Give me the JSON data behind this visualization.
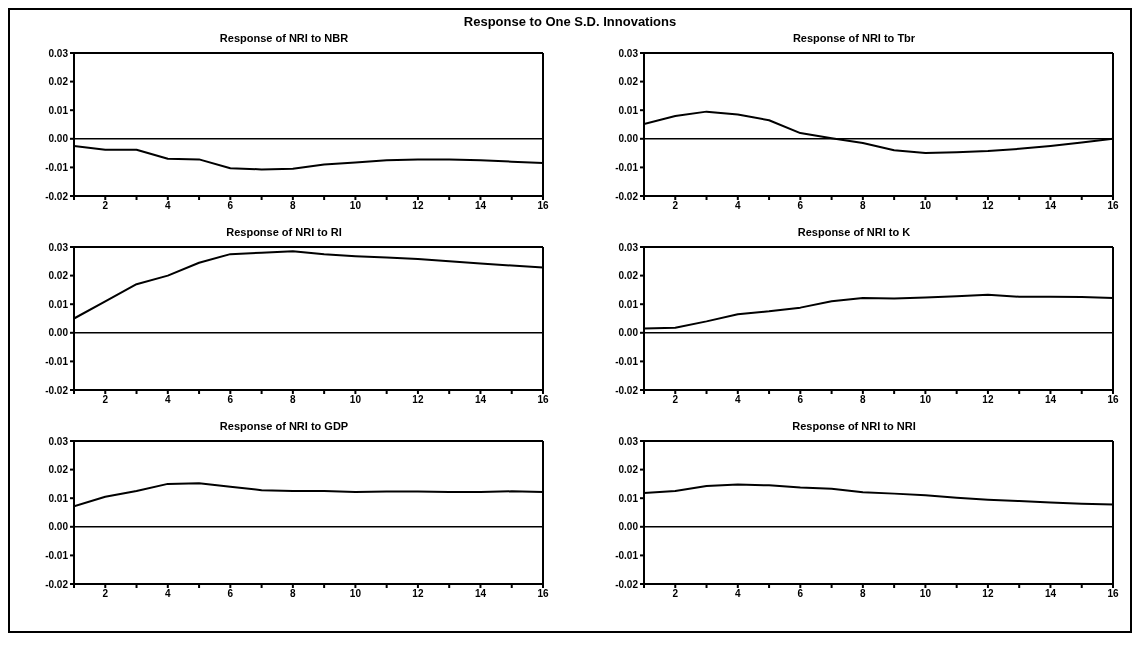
{
  "chart_data": [
    {
      "type": "line",
      "title": "Response of NRI to NBR",
      "annotations": [
        "Response to One S.D. Innovations"
      ],
      "x": [
        1,
        2,
        3,
        4,
        5,
        6,
        7,
        8,
        9,
        10,
        11,
        12,
        13,
        14,
        15,
        16
      ],
      "xlim": [
        1,
        16
      ],
      "xticks": [
        {
          "value": 1,
          "label": null
        },
        2,
        {
          "value": 3,
          "label": null
        },
        4,
        {
          "value": 5,
          "label": null
        },
        6,
        {
          "value": 7,
          "label": null
        },
        8,
        {
          "value": 9,
          "label": null
        },
        10,
        {
          "value": 11,
          "label": null
        },
        12,
        {
          "value": 13,
          "label": null
        },
        14,
        {
          "value": 15,
          "label": null
        },
        16
      ],
      "ylim": [
        -0.02,
        0.03
      ],
      "yticks": [
        {
          "value": -0.02,
          "label": "-0.02"
        },
        {
          "value": -0.01,
          "label": "-0.01"
        },
        {
          "value": 0,
          "label": "0.00"
        },
        {
          "value": 0.01,
          "label": "0.01"
        },
        {
          "value": 0.02,
          "label": "0.02"
        },
        {
          "value": 0.03,
          "label": "0.03"
        }
      ],
      "ref_lines": [
        {
          "axis": "y",
          "value": 0,
          "color": "#000000"
        }
      ],
      "grid": false,
      "legend": false,
      "marker": "none",
      "line_style": "solid",
      "series": [
        {
          "color": "#000000",
          "values": [
            -0.0025,
            -0.0038,
            -0.0038,
            -0.007,
            -0.0072,
            -0.0103,
            -0.0107,
            -0.0105,
            -0.009,
            -0.0083,
            -0.0075,
            -0.0072,
            -0.0072,
            -0.0075,
            -0.008,
            -0.0085
          ]
        }
      ]
    },
    {
      "type": "line",
      "title": "Response of NRI to Tbr",
      "x": [
        1,
        2,
        3,
        4,
        5,
        6,
        7,
        8,
        9,
        10,
        11,
        12,
        13,
        14,
        15,
        16
      ],
      "xlim": [
        1,
        16
      ],
      "xticks": [
        {
          "value": 1,
          "label": null
        },
        2,
        {
          "value": 3,
          "label": null
        },
        4,
        {
          "value": 5,
          "label": null
        },
        6,
        {
          "value": 7,
          "label": null
        },
        8,
        {
          "value": 9,
          "label": null
        },
        10,
        {
          "value": 11,
          "label": null
        },
        12,
        {
          "value": 13,
          "label": null
        },
        14,
        {
          "value": 15,
          "label": null
        },
        16
      ],
      "ylim": [
        -0.02,
        0.03
      ],
      "yticks": [
        {
          "value": -0.02,
          "label": "-0.02"
        },
        {
          "value": -0.01,
          "label": "-0.01"
        },
        {
          "value": 0,
          "label": "0.00"
        },
        {
          "value": 0.01,
          "label": "0.01"
        },
        {
          "value": 0.02,
          "label": "0.02"
        },
        {
          "value": 0.03,
          "label": "0.03"
        }
      ],
      "ref_lines": [
        {
          "axis": "y",
          "value": 0,
          "color": "#000000"
        }
      ],
      "grid": false,
      "legend": false,
      "marker": "none",
      "line_style": "solid",
      "series": [
        {
          "color": "#000000",
          "values": [
            0.0052,
            0.008,
            0.0095,
            0.0085,
            0.0065,
            0.002,
            0.0002,
            -0.0015,
            -0.004,
            -0.005,
            -0.0047,
            -0.0043,
            -0.0035,
            -0.0025,
            -0.0013,
            0
          ]
        }
      ]
    },
    {
      "type": "line",
      "title": "Response of NRI to RI",
      "x": [
        1,
        2,
        3,
        4,
        5,
        6,
        7,
        8,
        9,
        10,
        11,
        12,
        13,
        14,
        15,
        16
      ],
      "xlim": [
        1,
        16
      ],
      "xticks": [
        {
          "value": 1,
          "label": null
        },
        2,
        {
          "value": 3,
          "label": null
        },
        4,
        {
          "value": 5,
          "label": null
        },
        6,
        {
          "value": 7,
          "label": null
        },
        8,
        {
          "value": 9,
          "label": null
        },
        10,
        {
          "value": 11,
          "label": null
        },
        12,
        {
          "value": 13,
          "label": null
        },
        14,
        {
          "value": 15,
          "label": null
        },
        16
      ],
      "ylim": [
        -0.02,
        0.03
      ],
      "yticks": [
        {
          "value": -0.02,
          "label": "-0.02"
        },
        {
          "value": -0.01,
          "label": "-0.01"
        },
        {
          "value": 0,
          "label": "0.00"
        },
        {
          "value": 0.01,
          "label": "0.01"
        },
        {
          "value": 0.02,
          "label": "0.02"
        },
        {
          "value": 0.03,
          "label": "0.03"
        }
      ],
      "ref_lines": [
        {
          "axis": "y",
          "value": 0,
          "color": "#000000"
        }
      ],
      "grid": false,
      "legend": false,
      "marker": "none",
      "line_style": "solid",
      "series": [
        {
          "color": "#000000",
          "values": [
            0.005,
            0.011,
            0.017,
            0.02,
            0.0245,
            0.0275,
            0.028,
            0.0285,
            0.0275,
            0.0268,
            0.0263,
            0.0258,
            0.025,
            0.0242,
            0.0235,
            0.0228
          ]
        }
      ]
    },
    {
      "type": "line",
      "title": "Response of NRI to K",
      "x": [
        1,
        2,
        3,
        4,
        5,
        6,
        7,
        8,
        9,
        10,
        11,
        12,
        13,
        14,
        15,
        16
      ],
      "xlim": [
        1,
        16
      ],
      "xticks": [
        {
          "value": 1,
          "label": null
        },
        2,
        {
          "value": 3,
          "label": null
        },
        4,
        {
          "value": 5,
          "label": null
        },
        6,
        {
          "value": 7,
          "label": null
        },
        8,
        {
          "value": 9,
          "label": null
        },
        10,
        {
          "value": 11,
          "label": null
        },
        12,
        {
          "value": 13,
          "label": null
        },
        14,
        {
          "value": 15,
          "label": null
        },
        16
      ],
      "ylim": [
        -0.02,
        0.03
      ],
      "yticks": [
        {
          "value": -0.02,
          "label": "-0.02"
        },
        {
          "value": -0.01,
          "label": "-0.01"
        },
        {
          "value": 0,
          "label": "0.00"
        },
        {
          "value": 0.01,
          "label": "0.01"
        },
        {
          "value": 0.02,
          "label": "0.02"
        },
        {
          "value": 0.03,
          "label": "0.03"
        }
      ],
      "ref_lines": [
        {
          "axis": "y",
          "value": 0,
          "color": "#000000"
        }
      ],
      "grid": false,
      "legend": false,
      "marker": "none",
      "line_style": "solid",
      "series": [
        {
          "color": "#000000",
          "values": [
            0.0015,
            0.0018,
            0.004,
            0.0065,
            0.0075,
            0.0088,
            0.011,
            0.0122,
            0.012,
            0.0123,
            0.0128,
            0.0133,
            0.0126,
            0.0126,
            0.0125,
            0.0122
          ]
        }
      ]
    },
    {
      "type": "line",
      "title": "Response of NRI to GDP",
      "x": [
        1,
        2,
        3,
        4,
        5,
        6,
        7,
        8,
        9,
        10,
        11,
        12,
        13,
        14,
        15,
        16
      ],
      "xlim": [
        1,
        16
      ],
      "xticks": [
        {
          "value": 1,
          "label": null
        },
        2,
        {
          "value": 3,
          "label": null
        },
        4,
        {
          "value": 5,
          "label": null
        },
        6,
        {
          "value": 7,
          "label": null
        },
        8,
        {
          "value": 9,
          "label": null
        },
        10,
        {
          "value": 11,
          "label": null
        },
        12,
        {
          "value": 13,
          "label": null
        },
        14,
        {
          "value": 15,
          "label": null
        },
        16
      ],
      "ylim": [
        -0.02,
        0.03
      ],
      "yticks": [
        {
          "value": -0.02,
          "label": "-0.02"
        },
        {
          "value": -0.01,
          "label": "-0.01"
        },
        {
          "value": 0,
          "label": "0.00"
        },
        {
          "value": 0.01,
          "label": "0.01"
        },
        {
          "value": 0.02,
          "label": "0.02"
        },
        {
          "value": 0.03,
          "label": "0.03"
        }
      ],
      "ref_lines": [
        {
          "axis": "y",
          "value": 0,
          "color": "#000000"
        }
      ],
      "grid": false,
      "legend": false,
      "marker": "none",
      "line_style": "solid",
      "series": [
        {
          "color": "#000000",
          "values": [
            0.0072,
            0.0105,
            0.0125,
            0.015,
            0.0152,
            0.014,
            0.0128,
            0.0125,
            0.0125,
            0.0122,
            0.0123,
            0.0123,
            0.0122,
            0.0122,
            0.0124,
            0.0122
          ]
        }
      ]
    },
    {
      "type": "line",
      "title": "Response of NRI to NRI",
      "x": [
        1,
        2,
        3,
        4,
        5,
        6,
        7,
        8,
        9,
        10,
        11,
        12,
        13,
        14,
        15,
        16
      ],
      "xlim": [
        1,
        16
      ],
      "xticks": [
        {
          "value": 1,
          "label": null
        },
        2,
        {
          "value": 3,
          "label": null
        },
        4,
        {
          "value": 5,
          "label": null
        },
        6,
        {
          "value": 7,
          "label": null
        },
        8,
        {
          "value": 9,
          "label": null
        },
        10,
        {
          "value": 11,
          "label": null
        },
        12,
        {
          "value": 13,
          "label": null
        },
        14,
        {
          "value": 15,
          "label": null
        },
        16
      ],
      "ylim": [
        -0.02,
        0.03
      ],
      "yticks": [
        {
          "value": -0.02,
          "label": "-0.02"
        },
        {
          "value": -0.01,
          "label": "-0.01"
        },
        {
          "value": 0,
          "label": "0.00"
        },
        {
          "value": 0.01,
          "label": "0.01"
        },
        {
          "value": 0.02,
          "label": "0.02"
        },
        {
          "value": 0.03,
          "label": "0.03"
        }
      ],
      "ref_lines": [
        {
          "axis": "y",
          "value": 0,
          "color": "#000000"
        }
      ],
      "grid": false,
      "legend": false,
      "marker": "none",
      "line_style": "solid",
      "series": [
        {
          "color": "#000000",
          "values": [
            0.0118,
            0.0125,
            0.0143,
            0.0148,
            0.0145,
            0.0137,
            0.0133,
            0.0121,
            0.0116,
            0.011,
            0.0102,
            0.0095,
            0.009,
            0.0085,
            0.0081,
            0.0078
          ]
        }
      ]
    }
  ]
}
